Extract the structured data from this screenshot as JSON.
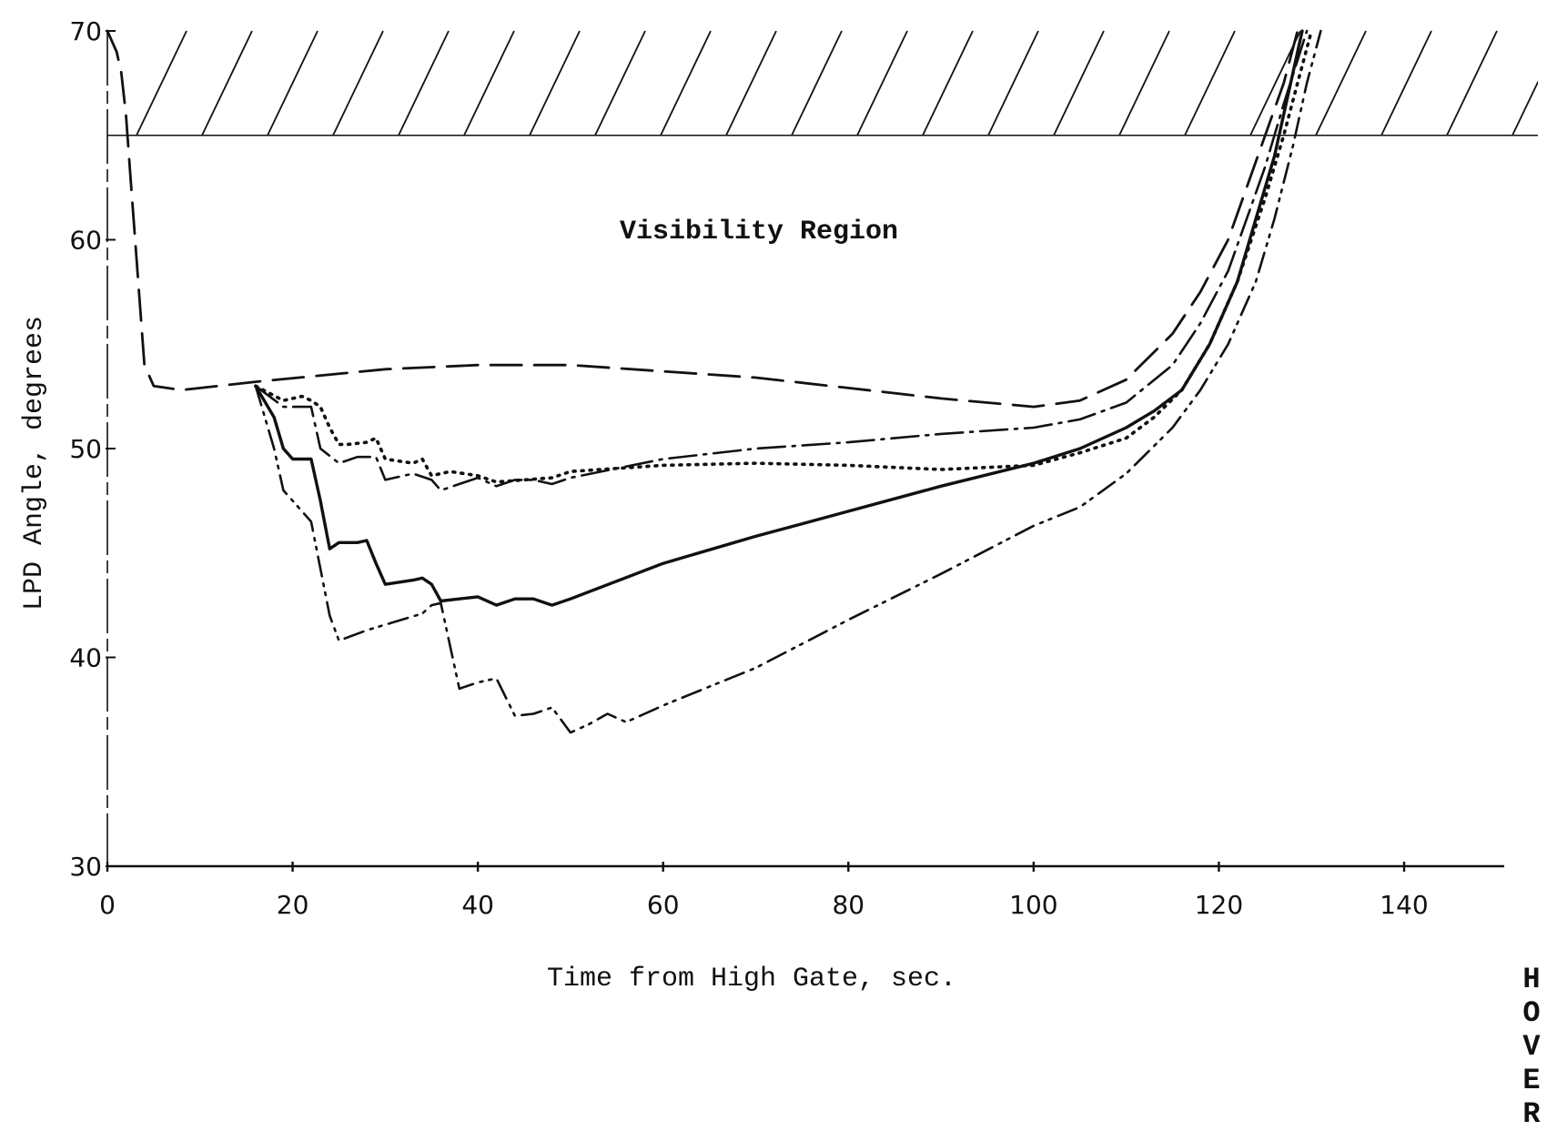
{
  "chart_data": {
    "type": "line",
    "title": "",
    "xlabel": "Time from High Gate, sec.",
    "ylabel": "LPD Angle, degrees",
    "xlim": [
      0,
      140
    ],
    "ylim": [
      30,
      70
    ],
    "xticks": [
      "0",
      "20",
      "40",
      "60",
      "80",
      "100",
      "120",
      "140"
    ],
    "yticks": [
      "30",
      "40",
      "50",
      "60",
      "70"
    ],
    "annotations": {
      "visibility_region": "Visibility Region",
      "hover": [
        "H",
        "O",
        "V",
        "E",
        "R"
      ]
    },
    "visibility_limit": 65,
    "series": [
      {
        "style": "long-dash",
        "x": [
          0,
          1,
          1.5,
          2,
          2.5,
          3,
          3.5,
          4,
          5,
          8,
          16,
          30,
          40,
          50,
          60,
          70,
          80,
          90,
          100,
          105,
          110,
          115,
          118,
          121,
          123,
          125,
          127,
          128.5
        ],
        "y": [
          70,
          69,
          68,
          66,
          63,
          60,
          57,
          54,
          53,
          52.8,
          53.2,
          53.8,
          54,
          54,
          53.7,
          53.4,
          52.9,
          52.4,
          52,
          52.3,
          53.3,
          55.5,
          57.5,
          60,
          62.5,
          65,
          67.5,
          70
        ]
      },
      {
        "style": "dash-dot",
        "x": [
          16,
          19,
          22,
          23,
          25,
          27,
          29,
          30,
          33,
          35,
          36,
          40,
          42,
          44,
          46,
          48,
          50,
          60,
          70,
          80,
          90,
          100,
          105,
          110,
          115,
          118,
          121,
          123,
          125,
          127,
          129.5
        ],
        "y": [
          53,
          52,
          52,
          50,
          49.3,
          49.6,
          49.6,
          48.5,
          48.8,
          48.5,
          48,
          48.6,
          48.2,
          48.5,
          48.5,
          48.3,
          48.6,
          49.5,
          50,
          50.3,
          50.7,
          51,
          51.4,
          52.2,
          54,
          56,
          58.5,
          61,
          63.5,
          66.5,
          70
        ]
      },
      {
        "style": "dotted",
        "x": [
          16,
          19,
          21,
          22,
          23,
          24,
          25,
          26,
          28,
          29,
          30,
          33,
          34,
          35,
          37,
          40,
          42,
          45,
          48,
          50,
          60,
          70,
          80,
          90,
          100,
          105,
          110,
          113,
          116,
          119,
          122,
          125,
          127,
          128.5,
          130
        ],
        "y": [
          53,
          52.3,
          52.5,
          52.3,
          52,
          51,
          50.2,
          50.2,
          50.3,
          50.5,
          49.5,
          49.3,
          49.5,
          48.7,
          48.9,
          48.7,
          48.4,
          48.5,
          48.6,
          48.9,
          49.2,
          49.3,
          49.2,
          49,
          49.2,
          49.8,
          50.5,
          51.5,
          52.8,
          55,
          58,
          62,
          65,
          67.5,
          70
        ]
      },
      {
        "style": "solid",
        "x": [
          16,
          18,
          19,
          20,
          22,
          23,
          24,
          25,
          27,
          28,
          29,
          30,
          33,
          34,
          35,
          36,
          38,
          40,
          42,
          44,
          46,
          48,
          50,
          60,
          70,
          80,
          90,
          100,
          105,
          110,
          113,
          116,
          119,
          122,
          124,
          126,
          127.5,
          129
        ],
        "y": [
          53,
          51.5,
          50,
          49.5,
          49.5,
          47.5,
          45.2,
          45.5,
          45.5,
          45.6,
          44.5,
          43.5,
          43.7,
          43.8,
          43.5,
          42.7,
          42.8,
          42.9,
          42.5,
          42.8,
          42.8,
          42.5,
          42.8,
          44.5,
          45.8,
          47,
          48.2,
          49.3,
          50,
          51,
          51.8,
          52.8,
          55,
          58,
          61,
          64,
          67,
          70
        ]
      },
      {
        "style": "dash-dot-dot",
        "x": [
          16,
          18,
          19,
          20,
          22,
          24,
          25,
          28,
          31,
          34,
          35,
          36,
          38,
          40,
          42,
          44,
          46,
          48,
          50,
          52,
          54,
          56,
          58,
          60,
          70,
          80,
          90,
          100,
          105,
          110,
          115,
          118,
          121,
          124,
          126,
          128,
          129.5,
          131
        ],
        "y": [
          53,
          50,
          48,
          47.5,
          46.5,
          42,
          40.8,
          41.3,
          41.7,
          42.1,
          42.5,
          42.6,
          38.5,
          38.8,
          39,
          37.2,
          37.3,
          37.6,
          36.4,
          36.8,
          37.3,
          36.9,
          37.3,
          37.7,
          39.5,
          41.8,
          44,
          46.3,
          47.2,
          48.8,
          51,
          52.8,
          55,
          58,
          61,
          64.5,
          67.5,
          70
        ]
      }
    ]
  }
}
